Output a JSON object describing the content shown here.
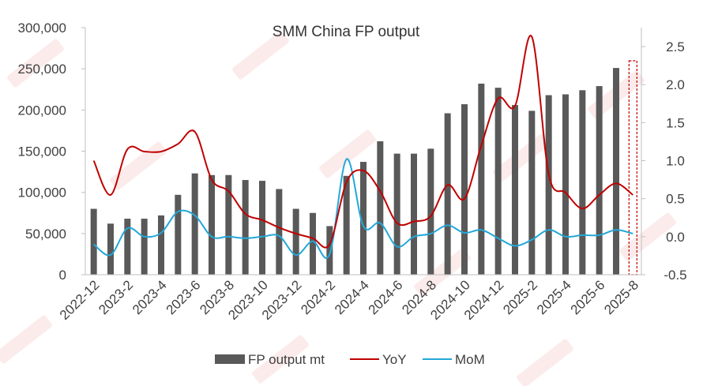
{
  "chart_data": {
    "type": "bar",
    "title": "SMM China FP output",
    "categories": [
      "2022-12",
      "2023-1",
      "2023-2",
      "2023-3",
      "2023-4",
      "2023-5",
      "2023-6",
      "2023-7",
      "2023-8",
      "2023-9",
      "2023-10",
      "2023-11",
      "2023-12",
      "2024-1",
      "2024-2",
      "2024-3",
      "2024-4",
      "2024-5",
      "2024-6",
      "2024-7",
      "2024-8",
      "2024-9",
      "2024-10",
      "2024-11",
      "2024-12",
      "2025-1",
      "2025-2",
      "2025-3",
      "2025-4",
      "2025-5",
      "2025-6",
      "2025-7",
      "2025-8"
    ],
    "tick_labels": [
      "2022-12",
      "2023-2",
      "2023-4",
      "2023-6",
      "2023-8",
      "2023-10",
      "2023-12",
      "2024-2",
      "2024-4",
      "2024-6",
      "2024-8",
      "2024-10",
      "2024-12",
      "2025-2",
      "2025-4",
      "2025-6",
      "2025-8"
    ],
    "series": [
      {
        "name": "FP output mt",
        "type": "bar",
        "axis": "left",
        "values": [
          80000,
          62000,
          68000,
          68000,
          72000,
          97000,
          123000,
          121000,
          121000,
          115000,
          114000,
          104000,
          80000,
          75000,
          59000,
          120000,
          137000,
          162000,
          147000,
          147000,
          153000,
          196000,
          207000,
          232000,
          227000,
          206000,
          199000,
          218000,
          219000,
          224000,
          229000,
          251000,
          null
        ]
      },
      {
        "name": "YoY",
        "type": "line",
        "axis": "right",
        "values": [
          1.0,
          0.55,
          1.15,
          1.12,
          1.12,
          1.22,
          1.38,
          0.75,
          0.6,
          0.3,
          0.22,
          0.12,
          0.04,
          -0.02,
          -0.1,
          0.72,
          0.87,
          0.6,
          0.18,
          0.2,
          0.27,
          0.68,
          0.5,
          1.2,
          1.82,
          1.72,
          2.63,
          0.82,
          0.58,
          0.37,
          0.55,
          0.7,
          0.55
        ]
      },
      {
        "name": "MoM",
        "type": "line",
        "axis": "right",
        "values": [
          -0.1,
          -0.24,
          0.11,
          0.0,
          0.05,
          0.33,
          0.28,
          0.0,
          0.0,
          -0.02,
          0.0,
          0.01,
          -0.24,
          -0.06,
          -0.23,
          1.02,
          0.14,
          0.18,
          -0.13,
          0.0,
          0.04,
          0.15,
          0.05,
          0.09,
          -0.02,
          -0.12,
          -0.04,
          0.09,
          0.0,
          0.02,
          0.02,
          0.09,
          0.04
        ]
      }
    ],
    "y_left": {
      "min": 0,
      "max": 300000,
      "ticks": [
        0,
        50000,
        100000,
        150000,
        200000,
        250000,
        300000
      ],
      "tick_labels": [
        "0",
        "50,000",
        "100,000",
        "150,000",
        "200,000",
        "250,000",
        "300,000"
      ]
    },
    "y_right": {
      "min": -0.5,
      "max": 2.75,
      "ticks": [
        -0.5,
        0.0,
        0.5,
        1.0,
        1.5,
        2.0,
        2.5
      ],
      "tick_labels": [
        "-0.5",
        "0.0",
        "0.5",
        "1.0",
        "1.5",
        "2.0",
        "2.5"
      ]
    },
    "grid": false,
    "legend_position": "bottom",
    "highlight_category": "2025-8",
    "colors": {
      "bar": "#595959",
      "yoy": "#c00000",
      "mom": "#23a8d8",
      "axis": "#bfbfbf",
      "highlight": "#c00000",
      "watermark": "#f4c7c7"
    }
  },
  "legend": {
    "bar_label": "FP output mt",
    "yoy_label": "YoY",
    "mom_label": "MoM"
  }
}
